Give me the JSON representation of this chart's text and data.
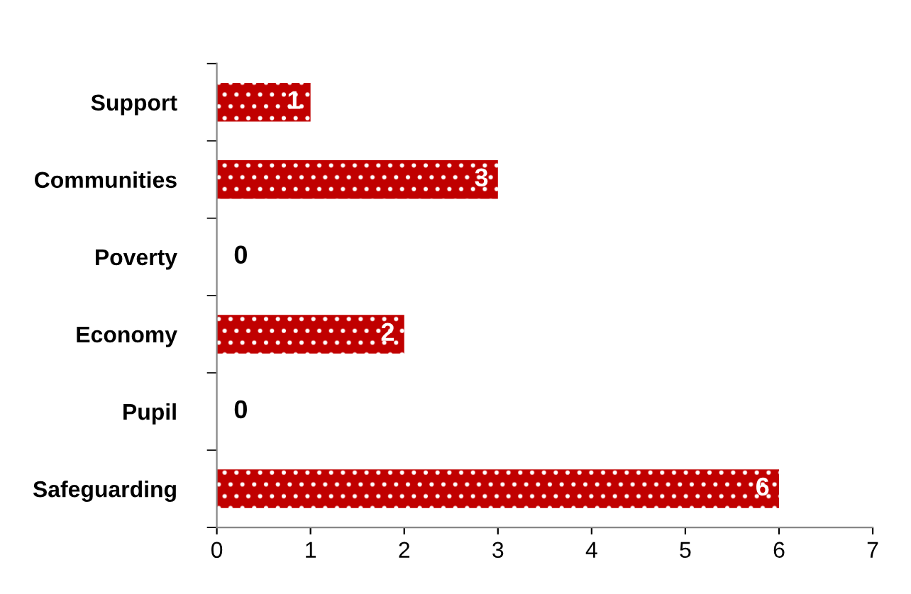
{
  "chart_data": {
    "type": "bar",
    "orientation": "horizontal",
    "categories": [
      "Support",
      "Communities",
      "Poverty",
      "Economy",
      "Pupil",
      "Safeguarding"
    ],
    "values": [
      1,
      3,
      0,
      2,
      0,
      6
    ],
    "color": "#c00000",
    "xlim": [
      0,
      7
    ],
    "xticks": [
      0,
      1,
      2,
      3,
      4,
      5,
      6,
      7
    ],
    "grid": false,
    "data_labels": true
  }
}
